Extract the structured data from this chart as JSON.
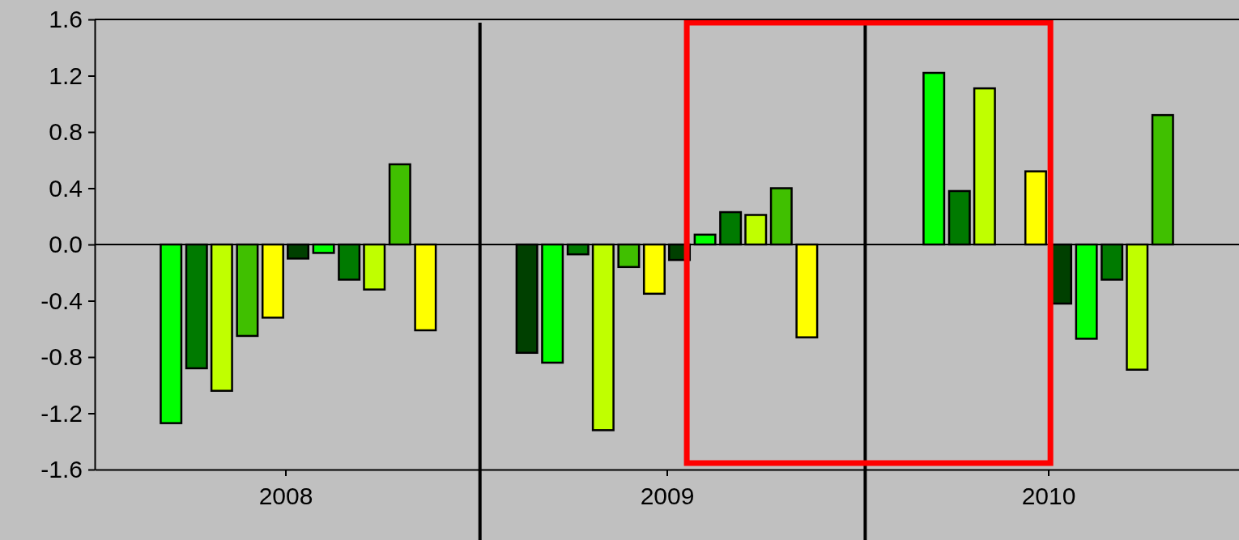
{
  "chart_data": {
    "type": "bar",
    "x": [
      2007.7,
      2007.767,
      2007.833,
      2007.9,
      2007.967,
      2008.033,
      2008.1,
      2008.167,
      2008.233,
      2008.3,
      2008.367,
      2008.633,
      2008.7,
      2008.767,
      2008.833,
      2008.9,
      2008.967,
      2009.033,
      2009.1,
      2009.167,
      2009.233,
      2009.3,
      2009.367,
      2009.7,
      2009.767,
      2009.833,
      2009.9,
      2009.967,
      2010.033,
      2010.1,
      2010.167,
      2010.233,
      2010.3
    ],
    "values": [
      -1.27,
      -0.88,
      -1.04,
      -0.65,
      -0.52,
      -0.1,
      -0.06,
      -0.25,
      -0.32,
      0.57,
      -0.61,
      -0.77,
      -0.84,
      -0.07,
      -1.32,
      -0.16,
      -0.35,
      -0.11,
      0.07,
      0.23,
      0.21,
      0.4,
      -0.66,
      1.22,
      0.38,
      1.11,
      0,
      0.52,
      -0.42,
      -0.67,
      -0.25,
      -0.89,
      0.92
    ],
    "colors": [
      "#00ff00",
      "#007a00",
      "#c0ff00",
      "#40c000",
      "#ffff00",
      "#004000",
      "#00ff00",
      "#007a00",
      "#c0ff00",
      "#40c000",
      "#ffff00",
      "#004000",
      "#00ff00",
      "#007a00",
      "#c0ff00",
      "#40c000",
      "#ffff00",
      "#004000",
      "#00ff00",
      "#007a00",
      "#c0ff00",
      "#40c000",
      "#ffff00",
      "#00ff00",
      "#007a00",
      "#c0ff00",
      "#40c000",
      "#ffff00",
      "#004000",
      "#00ff00",
      "#007a00",
      "#c0ff00",
      "#40c000"
    ],
    "xlim": [
      2007.5,
      2010.5
    ],
    "xticks": [
      2008,
      2009,
      2010
    ],
    "ylim": [
      -1.6,
      1.6
    ],
    "yticks": [
      -1.6,
      -1.2,
      -0.8,
      -0.4,
      {
        "value": 0,
        "label": "0.0"
      },
      0.4,
      0.8,
      1.2,
      1.6
    ],
    "ref_lines": [
      {
        "axis": "x",
        "value": 2008.51,
        "color": "#000000"
      },
      {
        "axis": "x",
        "value": 2009.52,
        "color": "#000000"
      }
    ]
  }
}
